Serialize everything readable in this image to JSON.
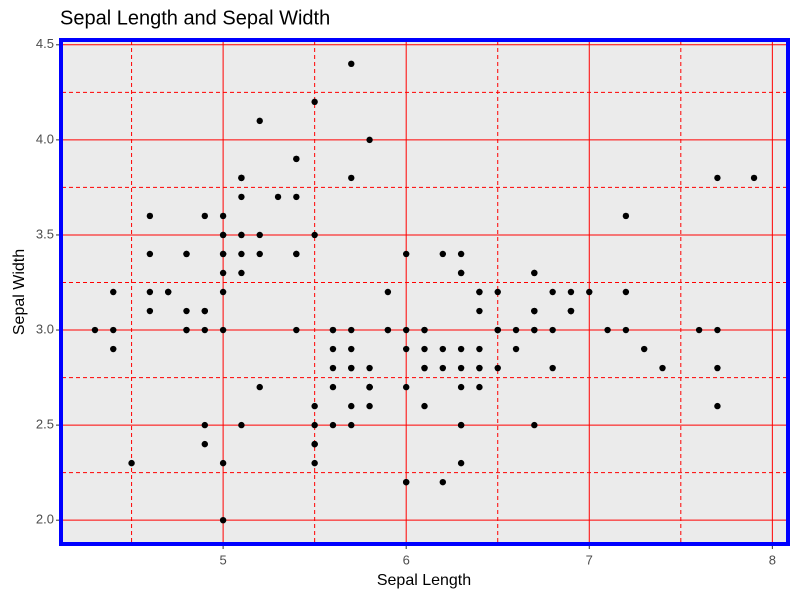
{
  "chart_data": {
    "type": "scatter",
    "title": "Sepal Length and Sepal Width",
    "x_label": "Sepal Length",
    "y_label": "Sepal Width",
    "xlim": [
      4.12,
      8.08
    ],
    "ylim": [
      1.88,
      4.52
    ],
    "xticks": [
      5,
      6,
      7,
      8
    ],
    "yticks": [
      {
        "value": 2.0,
        "label": "2.0"
      },
      2.5,
      {
        "value": 3.0,
        "label": "3.0"
      },
      3.5,
      {
        "value": 4.0,
        "label": "4.0"
      },
      4.5
    ],
    "x_minor_ticks": [
      4.5,
      5.5,
      6.5,
      7.5
    ],
    "y_minor_ticks": [
      2.25,
      2.75,
      3.25,
      3.75,
      4.25
    ],
    "grid": true,
    "grid_color": "#ff0000",
    "panel_color": "#ebebeb",
    "border_color": "#0000ff",
    "color": "#000000",
    "x": [
      5.1,
      4.9,
      4.7,
      4.6,
      5.0,
      5.4,
      4.6,
      5.0,
      4.4,
      4.9,
      5.4,
      4.8,
      4.8,
      4.3,
      5.8,
      5.7,
      5.4,
      5.1,
      5.7,
      5.1,
      5.4,
      5.1,
      4.6,
      5.1,
      4.8,
      5.0,
      5.0,
      5.2,
      5.2,
      4.7,
      4.8,
      5.4,
      5.2,
      5.5,
      4.9,
      5.0,
      5.5,
      4.9,
      4.4,
      5.1,
      5.0,
      4.5,
      4.4,
      5.0,
      5.1,
      4.8,
      5.1,
      4.6,
      5.3,
      5.0,
      7.0,
      6.4,
      6.9,
      5.5,
      6.5,
      5.7,
      6.3,
      4.9,
      6.6,
      5.2,
      5.0,
      5.9,
      6.0,
      6.1,
      5.6,
      6.7,
      5.6,
      5.8,
      6.2,
      5.6,
      5.9,
      6.1,
      6.3,
      6.1,
      6.4,
      6.6,
      6.8,
      6.7,
      6.0,
      5.7,
      5.5,
      5.5,
      5.8,
      6.0,
      5.4,
      6.0,
      6.7,
      6.3,
      5.6,
      5.5,
      5.5,
      6.1,
      5.8,
      5.0,
      5.6,
      5.7,
      5.7,
      6.2,
      5.1,
      5.7,
      6.3,
      5.8,
      7.1,
      6.3,
      6.5,
      7.6,
      4.9,
      7.3,
      6.7,
      7.2,
      6.5,
      6.4,
      6.8,
      5.7,
      5.8,
      6.4,
      6.5,
      7.7,
      7.7,
      6.0,
      6.9,
      5.6,
      7.7,
      6.3,
      6.7,
      7.2,
      6.2,
      6.1,
      6.4,
      7.2,
      7.4,
      7.9,
      6.4,
      6.3,
      6.1,
      7.7,
      6.3,
      6.4,
      6.0,
      6.9,
      6.7,
      6.9,
      5.8,
      6.8,
      6.7,
      6.7,
      6.3,
      6.5,
      6.2,
      5.9
    ],
    "values": [
      3.5,
      3.0,
      3.2,
      3.1,
      3.6,
      3.9,
      3.4,
      3.4,
      2.9,
      3.1,
      3.7,
      3.4,
      3.0,
      3.0,
      4.0,
      4.4,
      3.9,
      3.5,
      3.8,
      3.8,
      3.4,
      3.7,
      3.6,
      3.3,
      3.4,
      3.0,
      3.4,
      3.5,
      3.4,
      3.2,
      3.1,
      3.4,
      4.1,
      4.2,
      3.1,
      3.2,
      3.5,
      3.6,
      3.0,
      3.4,
      3.5,
      2.3,
      3.2,
      3.5,
      3.8,
      3.0,
      3.8,
      3.2,
      3.7,
      3.3,
      3.2,
      3.2,
      3.1,
      2.3,
      2.8,
      2.8,
      3.3,
      2.4,
      2.9,
      2.7,
      2.0,
      3.0,
      2.2,
      2.9,
      2.9,
      3.1,
      3.0,
      2.7,
      2.2,
      2.5,
      3.2,
      2.8,
      2.5,
      2.8,
      2.9,
      3.0,
      2.8,
      3.0,
      2.9,
      2.6,
      2.4,
      2.4,
      2.7,
      2.7,
      3.0,
      3.4,
      3.1,
      2.3,
      3.0,
      2.5,
      2.6,
      3.0,
      2.6,
      2.3,
      2.7,
      3.0,
      2.9,
      2.9,
      2.5,
      2.8,
      3.3,
      2.7,
      3.0,
      2.9,
      3.0,
      3.0,
      2.5,
      2.9,
      2.5,
      3.6,
      3.2,
      2.7,
      3.0,
      2.5,
      2.8,
      3.2,
      3.0,
      3.8,
      2.6,
      2.2,
      3.2,
      2.8,
      2.8,
      2.7,
      3.3,
      3.2,
      2.8,
      3.0,
      2.8,
      3.0,
      2.8,
      3.8,
      2.8,
      2.8,
      2.6,
      3.0,
      3.4,
      3.1,
      3.0,
      3.1,
      3.1,
      3.1,
      2.7,
      3.2,
      3.3,
      3.0,
      2.5,
      3.0,
      3.4,
      3.0
    ]
  }
}
